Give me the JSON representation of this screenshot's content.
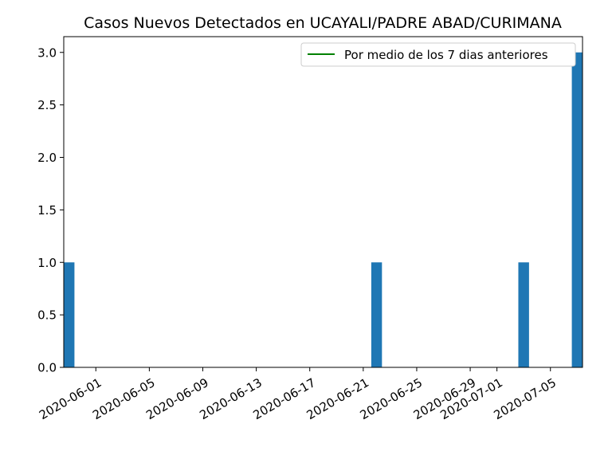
{
  "chart_data": {
    "type": "bar",
    "title": "Casos Nuevos Detectados en UCAYALI/PADRE ABAD/CURIMANA",
    "xlabel": "",
    "ylabel": "",
    "x_tick_labels": [
      "2020-06-01",
      "2020-06-05",
      "2020-06-09",
      "2020-06-13",
      "2020-06-17",
      "2020-06-21",
      "2020-06-25",
      "2020-06-29",
      "2020-07-01",
      "2020-07-05"
    ],
    "y_tick_labels": [
      "0.0",
      "0.5",
      "1.0",
      "1.5",
      "2.0",
      "2.5",
      "3.0"
    ],
    "ylim": [
      0,
      3.15
    ],
    "xlim": [
      "2020-05-29",
      "2020-07-06"
    ],
    "bars": [
      {
        "date": "2020-05-30",
        "value": 1
      },
      {
        "date": "2020-06-22",
        "value": 1
      },
      {
        "date": "2020-07-03",
        "value": 1
      },
      {
        "date": "2020-07-07",
        "value": 3
      }
    ],
    "series": [
      {
        "name": "Por medio de los 7 dias anteriores",
        "color": "#008000",
        "values": []
      }
    ],
    "bar_color": "#1f77b4",
    "legend_position": "top-right",
    "grid": false
  }
}
